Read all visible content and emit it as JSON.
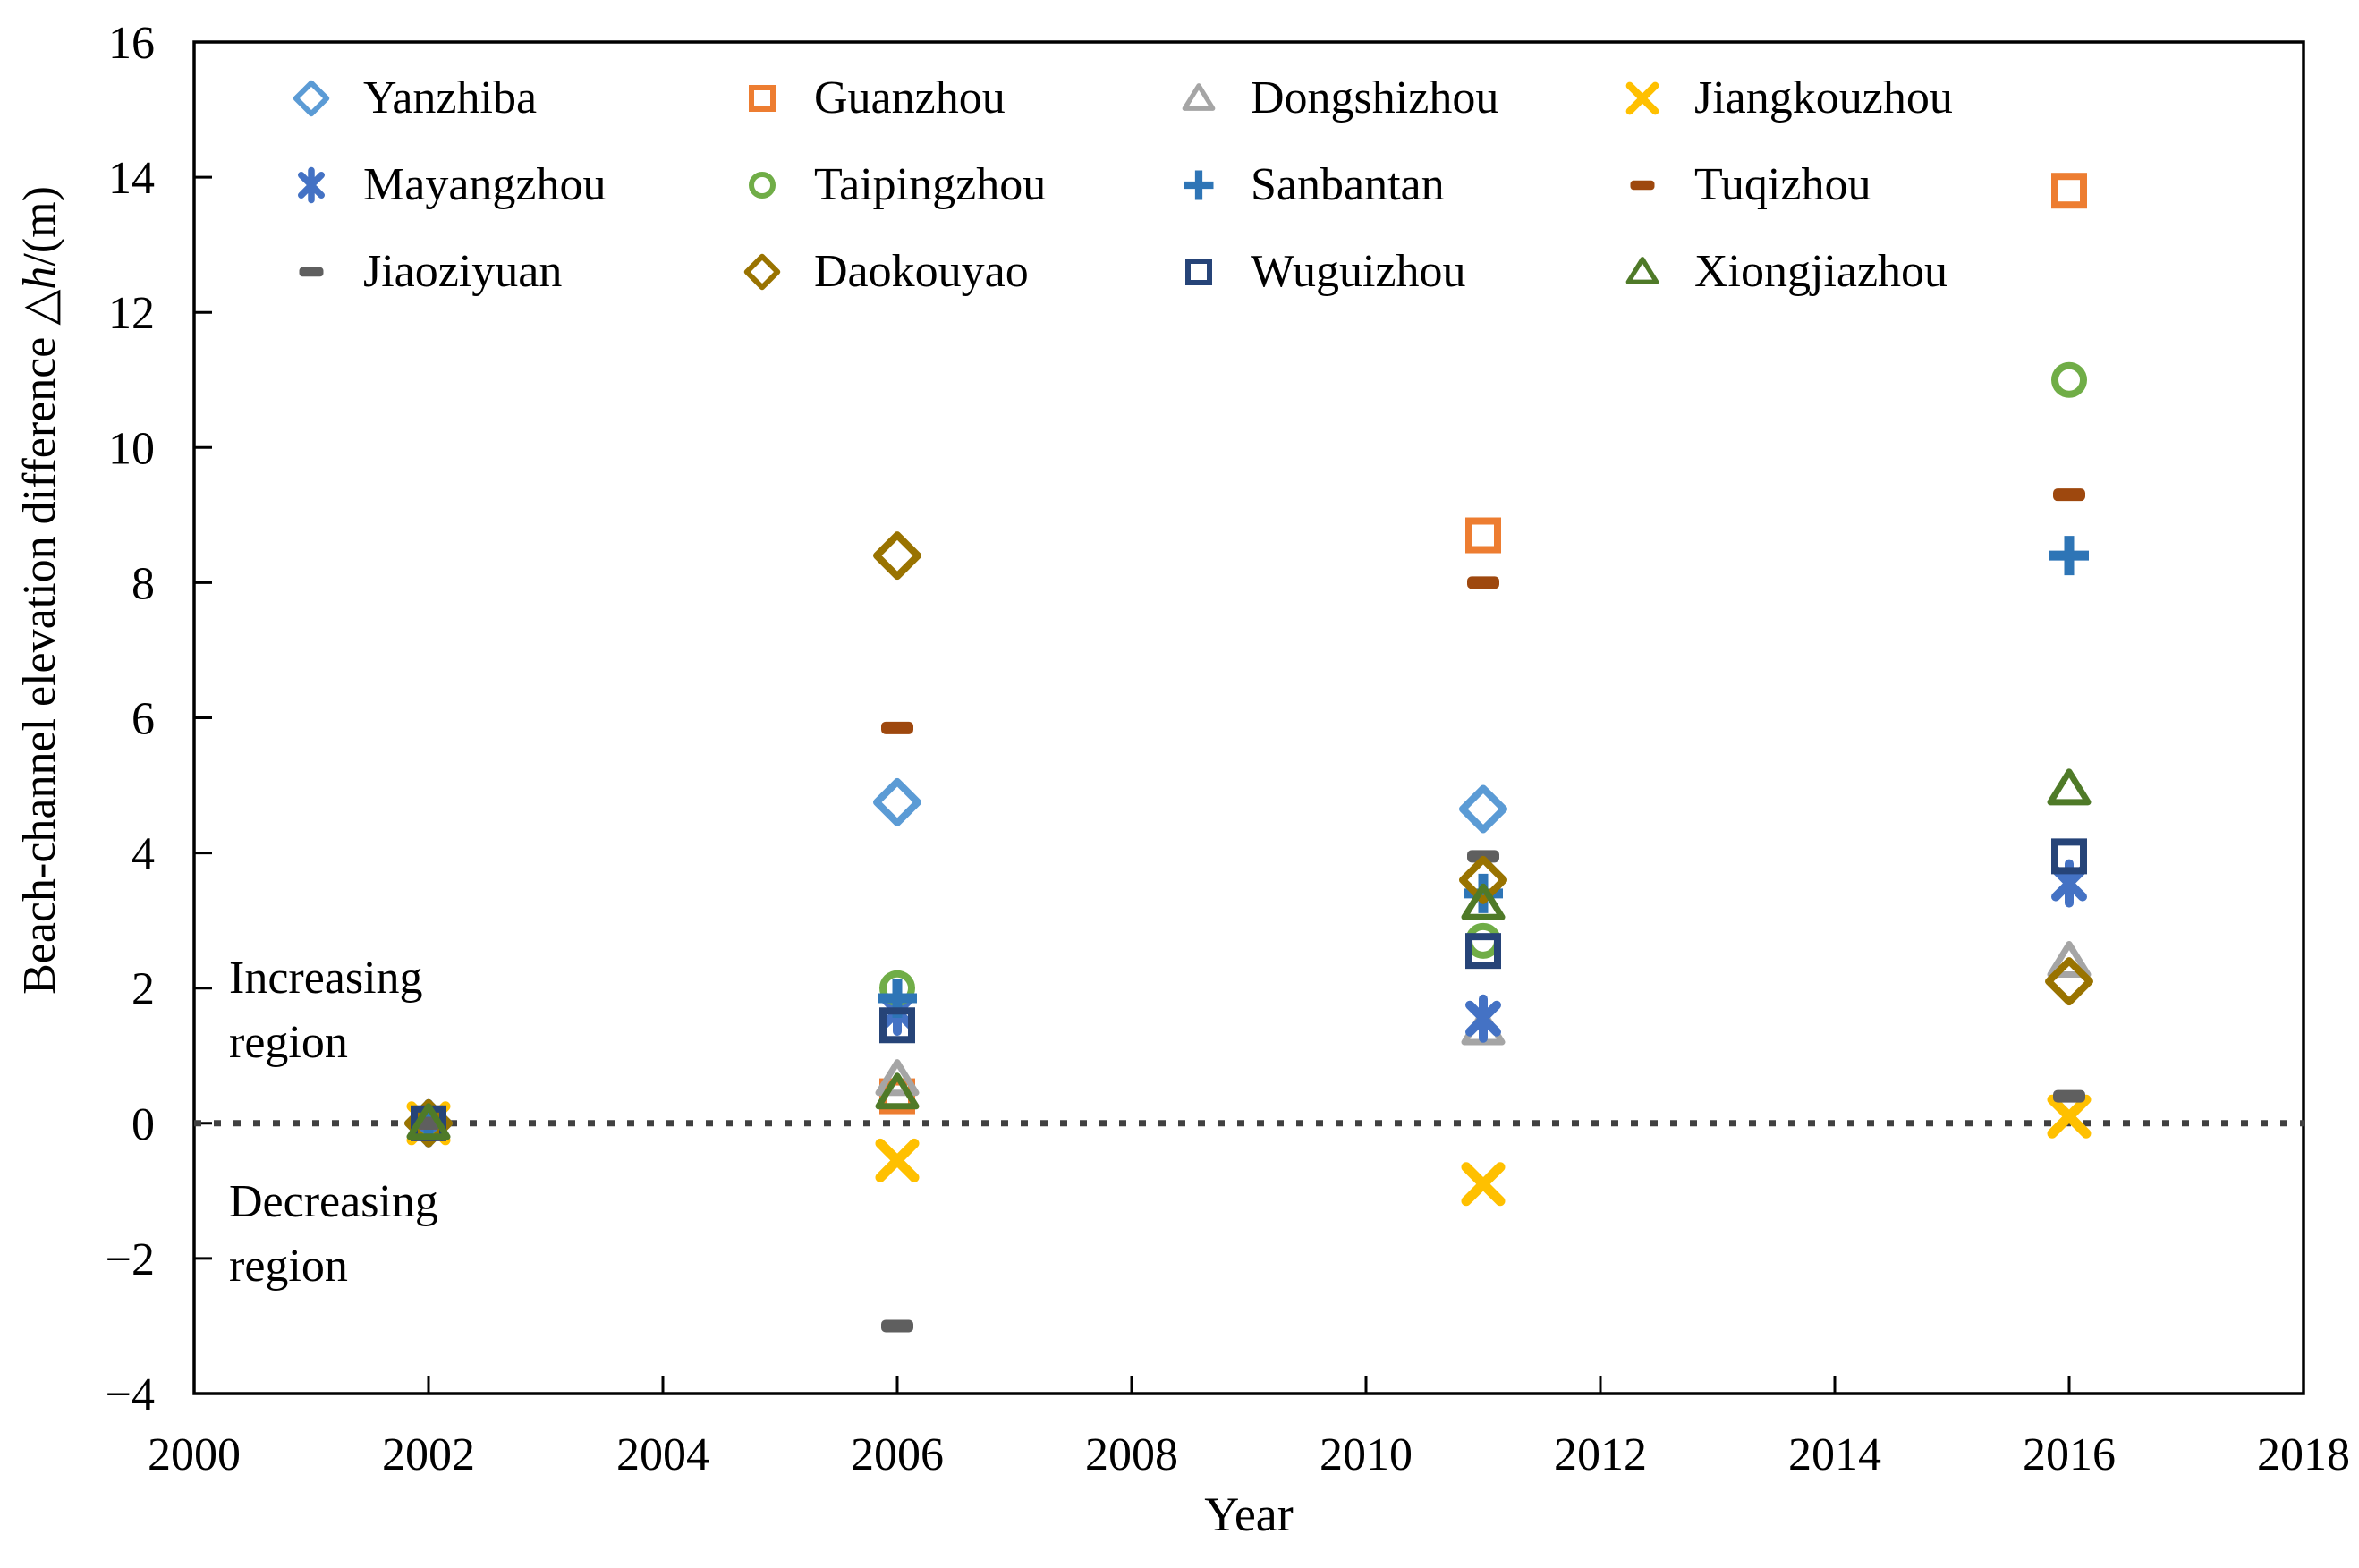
{
  "figure": {
    "background_color": "#ffffff",
    "axis_color": "#000000",
    "zero_line_color": "#404040"
  },
  "chart_data": {
    "type": "scatter",
    "title": "",
    "xlabel": "Year",
    "ylabel": "Beach-channel elevation difference △h/(m)",
    "ylabel_parts": {
      "prefix": "Beach-channel elevation difference △",
      "h": "h",
      "suffix": "/(m)"
    },
    "xlim": [
      2000,
      2018
    ],
    "ylim": [
      -4,
      16
    ],
    "x_ticks": [
      2000,
      2002,
      2004,
      2006,
      2008,
      2010,
      2012,
      2014,
      2016,
      2018
    ],
    "y_ticks": [
      -4,
      -2,
      0,
      2,
      4,
      6,
      8,
      10,
      12,
      14,
      16
    ],
    "grid": false,
    "zero_line": {
      "value": 0,
      "style": "dotted"
    },
    "legend_position": "top-inside",
    "annotations": [
      {
        "text": "Increasing region",
        "x": 2000.3,
        "y": 1.6
      },
      {
        "text": "Decreasing region",
        "x": 2000.3,
        "y": -1.7
      }
    ],
    "series": [
      {
        "name": "Yanzhiba",
        "marker": "open-diamond",
        "color": "#5B9BD5",
        "points": [
          [
            2002,
            0
          ],
          [
            2006,
            4.75
          ],
          [
            2011,
            4.65
          ]
        ]
      },
      {
        "name": "Guanzhou",
        "marker": "open-square",
        "color": "#ED7D31",
        "points": [
          [
            2002,
            0
          ],
          [
            2006,
            0.4
          ],
          [
            2011,
            8.7
          ],
          [
            2016,
            13.8
          ]
        ]
      },
      {
        "name": "Dongshizhou",
        "marker": "open-triangle",
        "color": "#A5A5A5",
        "points": [
          [
            2002,
            0
          ],
          [
            2006,
            0.65
          ],
          [
            2011,
            1.4
          ],
          [
            2016,
            2.4
          ]
        ]
      },
      {
        "name": "Jiangkouzhou",
        "marker": "x-cross",
        "color": "#FFC000",
        "points": [
          [
            2002,
            0
          ],
          [
            2006,
            -0.55
          ],
          [
            2011,
            -0.9
          ],
          [
            2016,
            0.1
          ]
        ]
      },
      {
        "name": "Mayangzhou",
        "marker": "asterisk",
        "color": "#4472C4",
        "points": [
          [
            2002,
            0
          ],
          [
            2006,
            1.65
          ],
          [
            2011,
            1.55
          ],
          [
            2016,
            3.55
          ]
        ]
      },
      {
        "name": "Taipingzhou",
        "marker": "open-circle",
        "color": "#70AD47",
        "points": [
          [
            2002,
            0
          ],
          [
            2006,
            2.0
          ],
          [
            2011,
            2.7
          ],
          [
            2016,
            11.0
          ]
        ]
      },
      {
        "name": "Sanbantan",
        "marker": "plus",
        "color": "#2E75B6",
        "points": [
          [
            2002,
            0
          ],
          [
            2006,
            1.85
          ],
          [
            2011,
            3.4
          ],
          [
            2016,
            8.4
          ]
        ]
      },
      {
        "name": "Tuqizhou",
        "marker": "dash",
        "color": "#9E480E",
        "points": [
          [
            2002,
            0
          ],
          [
            2006,
            5.85
          ],
          [
            2011,
            8.0
          ],
          [
            2016,
            9.3
          ]
        ]
      },
      {
        "name": "Jiaoziyuan",
        "marker": "dash",
        "color": "#5F5F5F",
        "points": [
          [
            2002,
            0
          ],
          [
            2006,
            -3.0
          ],
          [
            2011,
            3.95
          ],
          [
            2016,
            0.4
          ]
        ]
      },
      {
        "name": "Daokouyao",
        "marker": "open-diamond",
        "color": "#997300",
        "points": [
          [
            2002,
            0
          ],
          [
            2006,
            8.4
          ],
          [
            2011,
            3.6
          ],
          [
            2016,
            2.1
          ]
        ]
      },
      {
        "name": "Wuguizhou",
        "marker": "open-square",
        "color": "#264478",
        "points": [
          [
            2002,
            0
          ],
          [
            2006,
            1.45
          ],
          [
            2011,
            2.55
          ],
          [
            2016,
            3.95
          ]
        ]
      },
      {
        "name": "Xiongjiazhou",
        "marker": "open-triangle",
        "color": "#4F7A28",
        "points": [
          [
            2002,
            0
          ],
          [
            2006,
            0.45
          ],
          [
            2011,
            3.25
          ],
          [
            2016,
            4.95
          ]
        ]
      }
    ]
  }
}
